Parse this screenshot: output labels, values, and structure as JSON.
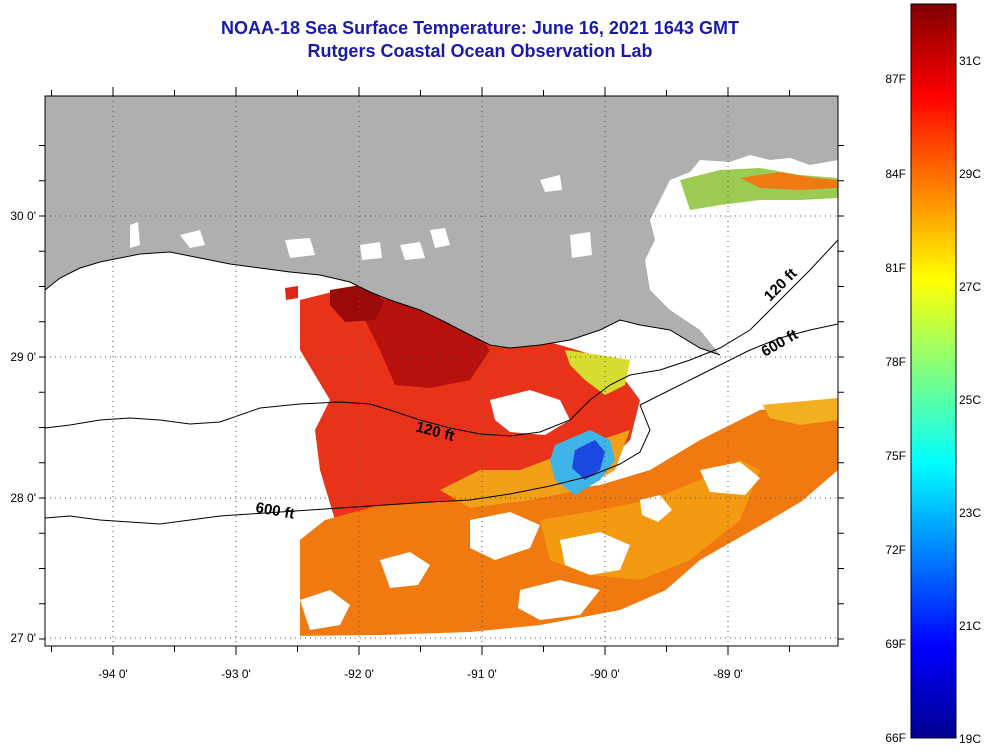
{
  "title": {
    "line1": "NOAA-18 Sea Surface Temperature:  June 16, 2021 1643 GMT",
    "line2": "Rutgers Coastal Ocean Observation Lab"
  },
  "map": {
    "lon_labels": [
      "-94 0'",
      "-93 0'",
      "-92 0'",
      "-91 0'",
      "-90 0'",
      "-89 0'"
    ],
    "lat_labels": [
      "30 0'",
      "29 0'",
      "28 0'",
      "27 0'"
    ],
    "isobaths": [
      {
        "label": "120 ft"
      },
      {
        "label": "600 ft"
      }
    ],
    "land_color": "#afafaf",
    "no_data_color": "#ffffff"
  },
  "colorbar": {
    "fahrenheit_labels": [
      "87F",
      "84F",
      "81F",
      "78F",
      "75F",
      "72F",
      "69F",
      "66F"
    ],
    "celsius_labels": [
      "31C",
      "29C",
      "27C",
      "25C",
      "23C",
      "21C",
      "19C"
    ],
    "range_c": [
      19,
      32
    ],
    "colors": [
      "#00008f",
      "#0000ff",
      "#0080ff",
      "#00ffff",
      "#80ff80",
      "#ffff00",
      "#ff8000",
      "#ff0000",
      "#800000"
    ]
  }
}
